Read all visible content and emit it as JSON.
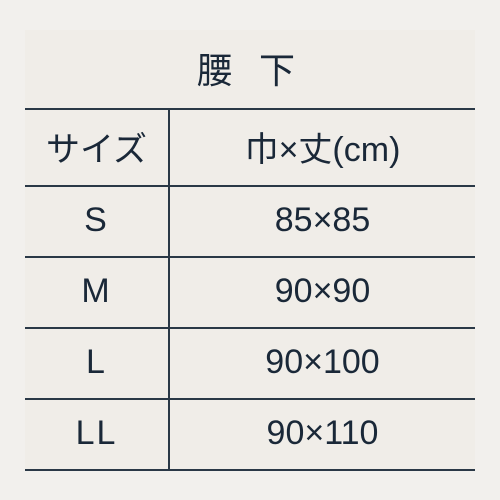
{
  "table": {
    "title": "腰 下",
    "columns": [
      "サイズ",
      "巾×丈(cm)"
    ],
    "rows": [
      {
        "size": "S",
        "dimensions": "85×85"
      },
      {
        "size": "M",
        "dimensions": "90×90"
      },
      {
        "size": "L",
        "dimensions": "90×100"
      },
      {
        "size": "LL",
        "dimensions": "90×110"
      }
    ],
    "colors": {
      "background": "#f0ede8",
      "text": "#1a2838",
      "border": "#2a3846"
    },
    "font_size_title": 36,
    "font_size_body": 34,
    "col_size_width_pct": 32
  }
}
